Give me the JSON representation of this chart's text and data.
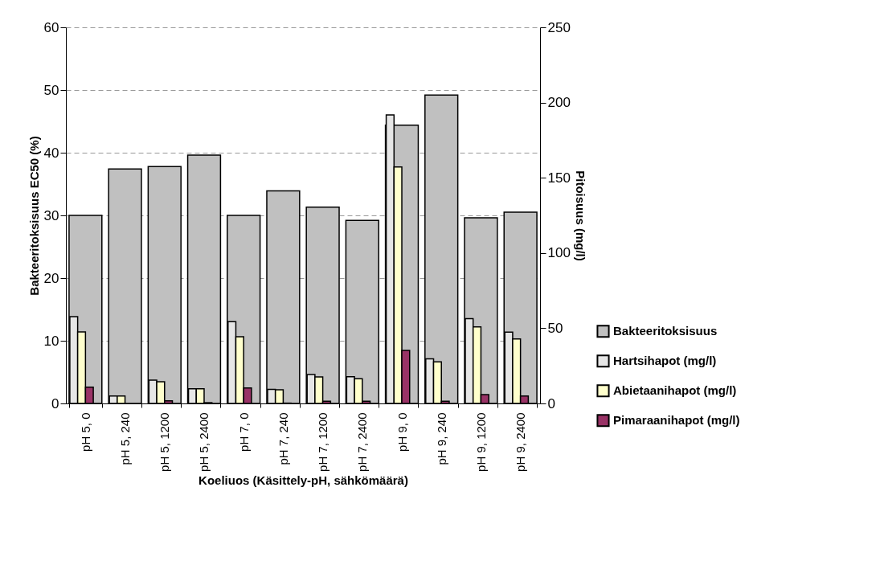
{
  "chart_data": {
    "type": "bar",
    "xlabel": "Koeliuos (Käsittely-pH, sähkömäärä)",
    "ylabel": "Bakteeritoksisuus EC50 (%)",
    "y2label": "Pitoisuus (mg/l)",
    "categories": [
      "pH 5, 0",
      "pH 5, 240",
      "pH 5, 1200",
      "pH 5, 2400",
      "pH 7, 0",
      "pH 7, 240",
      "pH 7, 1200",
      "pH 7, 2400",
      "pH 9, 0",
      "pH 9, 240",
      "pH 9, 1200",
      "pH 9, 2400"
    ],
    "series": [
      {
        "name": "Bakteeritoksisuus",
        "color": "#c0c0c0",
        "values": [
          30.0,
          37.4,
          37.8,
          39.6,
          30.0,
          33.9,
          31.3,
          29.2,
          44.4,
          49.2,
          29.6,
          30.5
        ]
      },
      {
        "name": "Hartsihapot (mg/l)",
        "color": "#e6e6e6",
        "axis": "y2",
        "values": [
          57.7,
          4.9,
          15.5,
          9.8,
          54.3,
          9.4,
          19.2,
          17.8,
          191.8,
          29.6,
          56.3,
          47.4
        ]
      },
      {
        "name": "Abietaanihapot (mg/l)",
        "color": "#ffffcc",
        "axis": "y2",
        "values": [
          47.5,
          4.9,
          14.4,
          9.8,
          44.3,
          9.1,
          17.6,
          16.4,
          157.2,
          27.6,
          50.9,
          42.9
        ]
      },
      {
        "name": "Pimaraanihapot (mg/l)",
        "color": "#993366",
        "axis": "y2",
        "values": [
          10.8,
          null,
          1.8,
          0.5,
          10.3,
          0.2,
          1.5,
          1.5,
          35.3,
          1.5,
          5.9,
          5.0
        ]
      }
    ],
    "ylim": [
      0,
      60
    ],
    "yticks": [
      0,
      10,
      20,
      30,
      40,
      50,
      60
    ],
    "y2lim": [
      0,
      250
    ],
    "y2ticks": [
      0,
      50,
      100,
      150,
      200,
      250
    ],
    "grid": "y",
    "legend": "right"
  }
}
